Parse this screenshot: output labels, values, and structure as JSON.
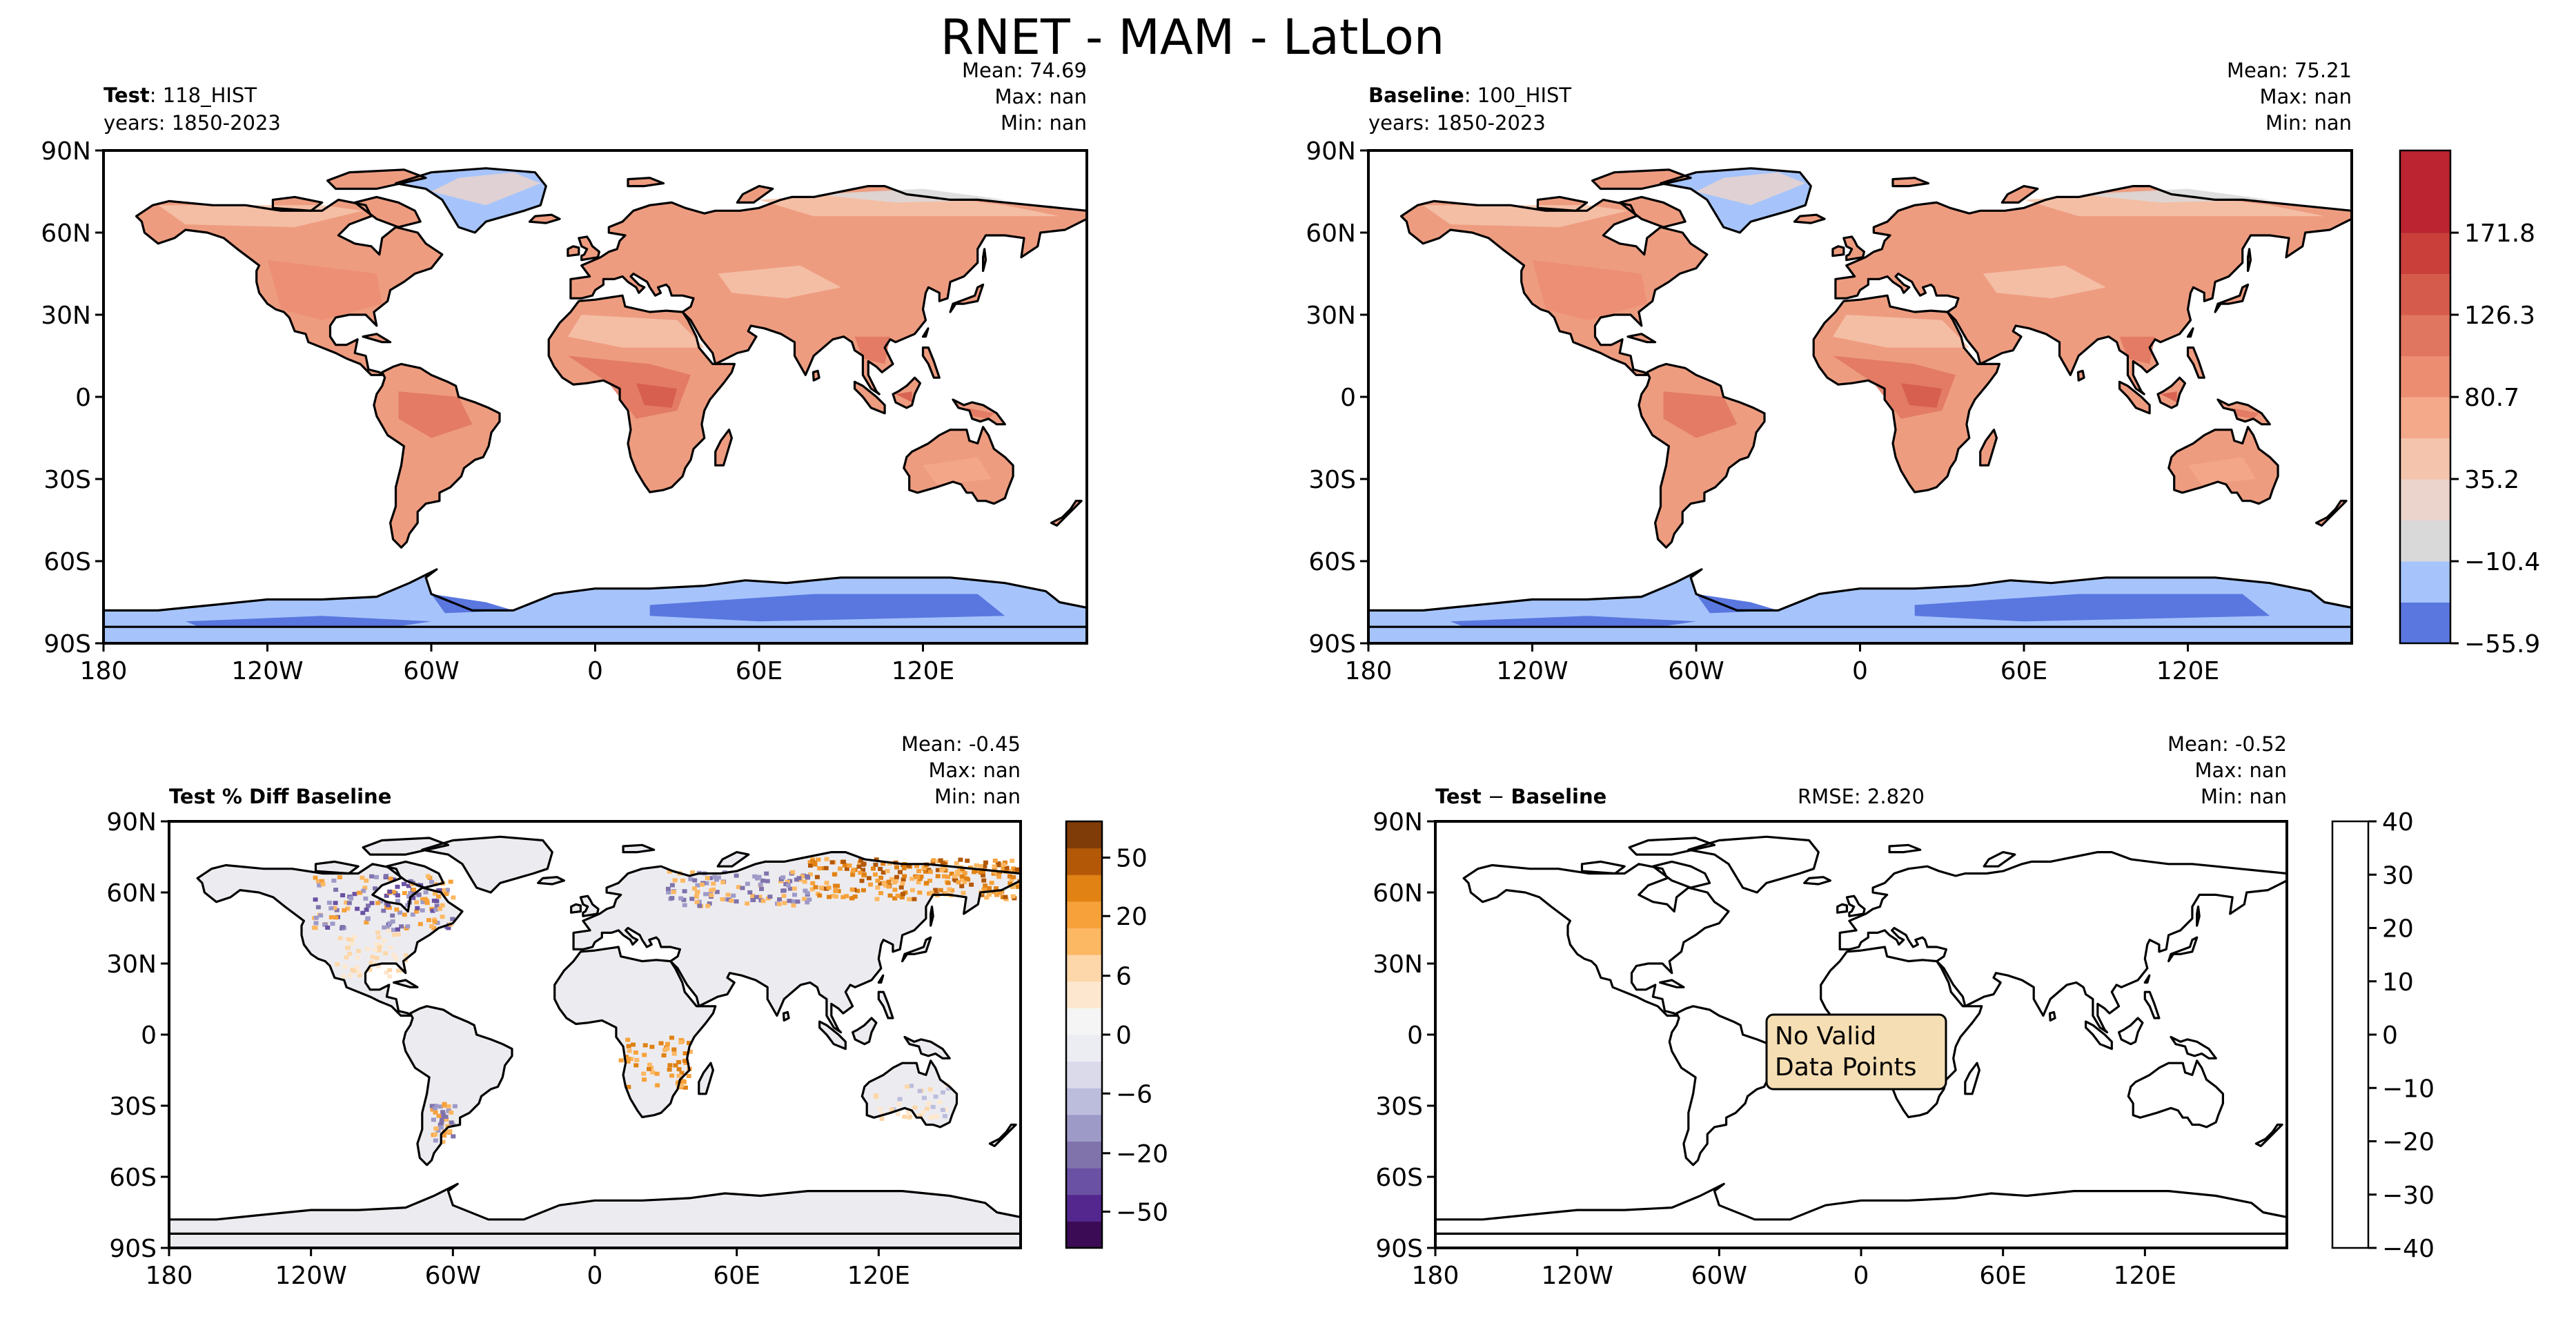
{
  "figure": {
    "title": "RNET - MAM - LatLon"
  },
  "colors": {
    "main_cmap": [
      "#5a77e0",
      "#a6c4fb",
      "#d9d9d9",
      "#ead4cc",
      "#f5c4ac",
      "#f4a98a",
      "#ec8d72",
      "#e07560",
      "#d55b4c",
      "#ca3f3a",
      "#bb2430"
    ],
    "diff_cmap": [
      "#3b0b55",
      "#54278f",
      "#6a51a3",
      "#8073ac",
      "#9e9ac8",
      "#bcbddc",
      "#dadaeb",
      "#ececf3",
      "#f5f5f5",
      "#fde8cf",
      "#fdd7aa",
      "#fdb863",
      "#f6a13a",
      "#e08214",
      "#b35806",
      "#7f3b08"
    ],
    "land_main": "#ee9c80",
    "land_diff": "#ececf0",
    "antarctica": "#a6c4fb",
    "antarctica_dark": "#5a77e0",
    "textbox_fill": "#f5deb3"
  },
  "chart_data": [
    {
      "type": "heatmap",
      "title_bold": "Test",
      "title_rest": ": 118_HIST",
      "subtitle": "years: 1850-2023",
      "stats": {
        "mean_label": "Mean:",
        "mean": "74.69",
        "max_label": "Max:",
        "max": "nan",
        "min_label": "Min:",
        "min": "nan"
      },
      "xticks": [
        "180",
        "120W",
        "60W",
        "0",
        "60E",
        "120E"
      ],
      "yticks": [
        "90N",
        "60N",
        "30N",
        "0",
        "30S",
        "60S",
        "90S"
      ],
      "xlim": [
        -180,
        180
      ],
      "ylim": [
        -90,
        90
      ]
    },
    {
      "type": "heatmap",
      "title_bold": "Baseline",
      "title_rest": ": 100_HIST",
      "subtitle": "years: 1850-2023",
      "stats": {
        "mean_label": "Mean:",
        "mean": "75.21",
        "max_label": "Max:",
        "max": "nan",
        "min_label": "Min:",
        "min": "nan"
      },
      "xticks": [
        "180",
        "120W",
        "60W",
        "0",
        "60E",
        "120E"
      ],
      "yticks": [
        "90N",
        "60N",
        "30N",
        "0",
        "30S",
        "60S",
        "90S"
      ],
      "xlim": [
        -180,
        180
      ],
      "ylim": [
        -90,
        90
      ],
      "colorbar": {
        "ticks": [
          "171.8",
          "126.3",
          "80.7",
          "35.2",
          "−10.4",
          "−55.9"
        ],
        "values": [
          171.8,
          126.3,
          80.7,
          35.2,
          -10.4,
          -55.9
        ],
        "range": [
          -55.9,
          217.4
        ]
      }
    },
    {
      "type": "heatmap",
      "title_bold": "Test % Diff Baseline",
      "stats": {
        "mean_label": "Mean:",
        "mean": "-0.45",
        "max_label": "Max:",
        "max": "nan",
        "min_label": "Min:",
        "min": "nan"
      },
      "xticks": [
        "180",
        "120W",
        "60W",
        "0",
        "60E",
        "120E"
      ],
      "yticks": [
        "90N",
        "60N",
        "30N",
        "0",
        "30S",
        "60S",
        "90S"
      ],
      "xlim": [
        -180,
        180
      ],
      "ylim": [
        -90,
        90
      ],
      "colorbar": {
        "ticks": [
          "50",
          "20",
          "6",
          "0",
          "−6",
          "−20",
          "−50"
        ]
      }
    },
    {
      "type": "heatmap",
      "title_bold": "Test",
      "title_op": " − ",
      "title_bold2": "Baseline",
      "rmse": "RMSE: 2.820",
      "stats": {
        "mean_label": "Mean:",
        "mean": "-0.52",
        "max_label": "Max:",
        "max": "nan",
        "min_label": "Min:",
        "min": "nan"
      },
      "xticks": [
        "180",
        "120W",
        "60W",
        "0",
        "60E",
        "120E"
      ],
      "yticks": [
        "90N",
        "60N",
        "30N",
        "0",
        "30S",
        "60S",
        "90S"
      ],
      "xlim": [
        -180,
        180
      ],
      "ylim": [
        -90,
        90
      ],
      "annotation": [
        "No Valid",
        "Data Points"
      ],
      "colorbar": {
        "ticks": [
          "40",
          "30",
          "20",
          "10",
          "0",
          "−10",
          "−20",
          "−30",
          "−40"
        ],
        "values": [
          40,
          30,
          20,
          10,
          0,
          -10,
          -20,
          -30,
          -40
        ],
        "range": [
          -40,
          40
        ]
      }
    }
  ]
}
